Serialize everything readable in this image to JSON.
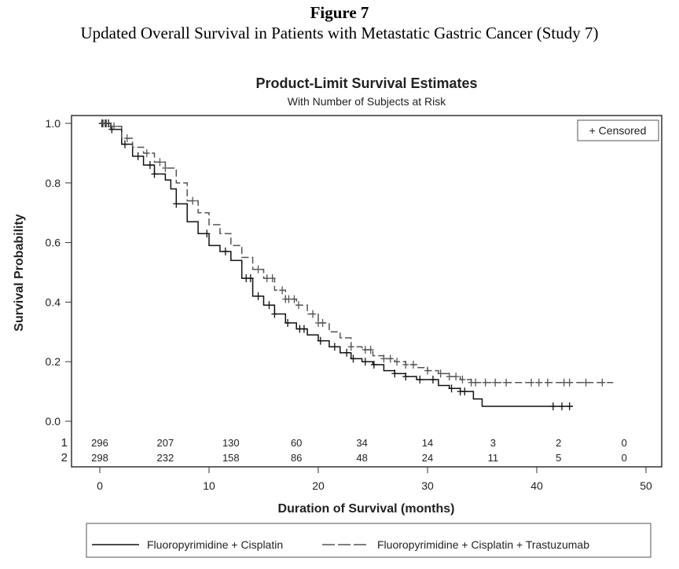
{
  "figure": {
    "label": "Figure 7",
    "caption": "Updated Overall Survival in Patients with Metastatic Gastric Cancer (Study 7)"
  },
  "chart_data": {
    "type": "line",
    "subtype": "kaplan-meier-step",
    "title": "Product-Limit Survival Estimates",
    "subtitle": "With Number of Subjects at Risk",
    "xlabel": "Duration of Survival (months)",
    "ylabel": "Survival Probability",
    "xlim": [
      -2.5,
      51.5
    ],
    "ylim": [
      0.0,
      1.0
    ],
    "xticks": [
      0,
      10,
      20,
      30,
      40,
      50
    ],
    "yticks": [
      0.0,
      0.2,
      0.4,
      0.6,
      0.8,
      1.0
    ],
    "ytick_labels": [
      "0.0",
      "0.2",
      "0.4",
      "0.6",
      "0.8",
      "1.0"
    ],
    "grid": false,
    "censored_legend": "+ Censored",
    "censored_legend_position": "top-right",
    "legend_position": "bottom",
    "series": [
      {
        "name": "Fluoropyrimidine + Cisplatin",
        "risk_label": "1",
        "style": "solid",
        "color": "#111111",
        "x": [
          0,
          1,
          2,
          3,
          4,
          5,
          6,
          6.5,
          7,
          8,
          9,
          10,
          11,
          12,
          13,
          14,
          15,
          16,
          17,
          18,
          19,
          20,
          21,
          22,
          23,
          24,
          25,
          26,
          27,
          28,
          29,
          30,
          31,
          32,
          33,
          34.2,
          35,
          43.3
        ],
        "y": [
          1.0,
          0.98,
          0.93,
          0.89,
          0.86,
          0.83,
          0.81,
          0.78,
          0.73,
          0.67,
          0.63,
          0.59,
          0.57,
          0.54,
          0.48,
          0.42,
          0.39,
          0.36,
          0.33,
          0.31,
          0.29,
          0.27,
          0.25,
          0.23,
          0.21,
          0.2,
          0.19,
          0.17,
          0.16,
          0.15,
          0.14,
          0.14,
          0.12,
          0.11,
          0.1,
          0.075,
          0.05,
          0.05
        ],
        "censored_x": [
          0.2,
          0.5,
          0.8,
          1.1,
          2.3,
          3.5,
          4.6,
          5.0,
          7.0,
          9.8,
          11.5,
          13.4,
          13.8,
          14.5,
          15.5,
          16.0,
          17.2,
          18.3,
          18.7,
          20.2,
          21.5,
          22.6,
          23.2,
          24.3,
          25.1,
          27.0,
          28.0,
          29.3,
          30.5,
          32.2,
          33.0,
          33.4,
          41.5,
          42.3,
          43.0
        ],
        "at_risk": [
          296,
          207,
          130,
          60,
          34,
          14,
          3,
          2,
          0
        ]
      },
      {
        "name": "Fluoropyrimidine + Cisplatin + Trastuzumab",
        "risk_label": "2",
        "style": "dashed",
        "color": "#555555",
        "x": [
          0,
          1,
          2,
          3,
          4,
          5,
          6,
          7,
          8,
          9,
          10,
          11,
          12,
          13,
          14,
          15,
          16,
          17,
          18,
          19,
          20,
          21,
          22,
          23,
          24,
          25,
          26,
          27,
          28,
          29,
          30,
          31,
          32,
          33,
          34,
          47
        ],
        "y": [
          1.0,
          0.99,
          0.95,
          0.92,
          0.9,
          0.87,
          0.85,
          0.8,
          0.74,
          0.7,
          0.66,
          0.63,
          0.59,
          0.55,
          0.51,
          0.48,
          0.44,
          0.41,
          0.39,
          0.36,
          0.33,
          0.3,
          0.28,
          0.25,
          0.24,
          0.22,
          0.21,
          0.2,
          0.19,
          0.18,
          0.17,
          0.16,
          0.15,
          0.14,
          0.13,
          0.13
        ],
        "censored_x": [
          0.3,
          0.6,
          1.0,
          1.3,
          2.5,
          4.3,
          5.5,
          6.0,
          8.5,
          14.5,
          15.3,
          15.8,
          16.7,
          17.0,
          17.3,
          17.8,
          18.2,
          19.5,
          20.0,
          20.4,
          23.0,
          24.3,
          24.8,
          26.0,
          26.6,
          27.2,
          28.0,
          28.7,
          30.0,
          31.2,
          32.0,
          32.6,
          33.2,
          34.0,
          34.4,
          35.3,
          36.2,
          37.2,
          39.5,
          40.2,
          41.0,
          42.5,
          43.0,
          44.5,
          46.0
        ],
        "at_risk": [
          298,
          232,
          158,
          86,
          48,
          24,
          11,
          5,
          0
        ]
      }
    ],
    "at_risk_times": [
      0,
      6,
      12,
      18,
      24,
      30,
      36,
      42,
      48
    ]
  }
}
